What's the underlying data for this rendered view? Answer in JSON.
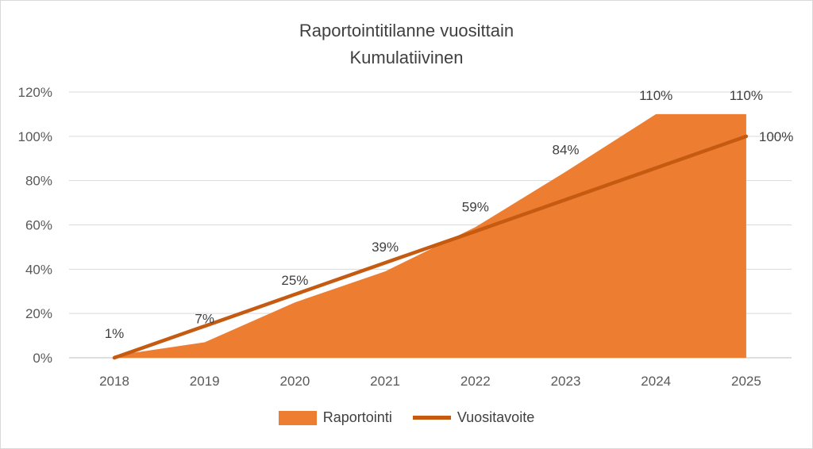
{
  "chart_data": {
    "type": "area",
    "title": "Raportointitilanne vuosittain",
    "subtitle": "Kumulatiivinen",
    "categories": [
      "2018",
      "2019",
      "2020",
      "2021",
      "2022",
      "2023",
      "2024",
      "2025"
    ],
    "series": [
      {
        "name": "Raportointi",
        "type": "area",
        "color": "#ED7D31",
        "values": [
          1,
          7,
          25,
          39,
          59,
          84,
          110,
          110
        ],
        "data_labels": [
          "1%",
          "7%",
          "25%",
          "39%",
          "59%",
          "84%",
          "110%",
          "110%"
        ]
      },
      {
        "name": "Vuositavoite",
        "type": "line",
        "color": "#C55A11",
        "values": [
          0,
          14.3,
          28.6,
          42.9,
          57.1,
          71.4,
          85.7,
          100
        ],
        "data_labels": [
          "",
          "",
          "",
          "",
          "",
          "",
          "",
          "100%"
        ]
      }
    ],
    "ylim": [
      0,
      120
    ],
    "yticks": [
      0,
      20,
      40,
      60,
      80,
      100,
      120
    ],
    "ytick_labels": [
      "0%",
      "20%",
      "40%",
      "60%",
      "80%",
      "100%",
      "120%"
    ],
    "grid": true,
    "legend_position": "bottom"
  }
}
